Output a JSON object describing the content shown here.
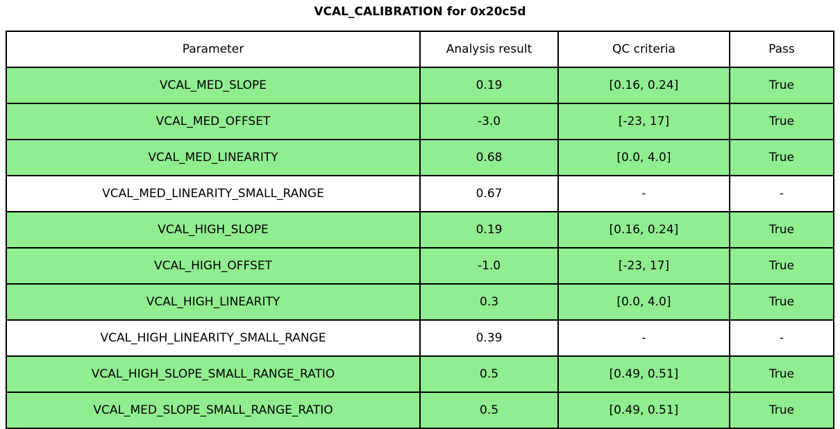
{
  "title": "VCAL_CALIBRATION for 0x20c5d",
  "colors": {
    "row_pass_green": "#90EE90",
    "row_plain": "#ffffff",
    "border": "#000000",
    "text": "#000000"
  },
  "chart_data": {
    "type": "table",
    "title": "VCAL_CALIBRATION for 0x20c5d",
    "columns": [
      "Parameter",
      "Analysis result",
      "QC criteria",
      "Pass"
    ],
    "rows": [
      [
        "VCAL_MED_SLOPE",
        "0.19",
        "[0.16, 0.24]",
        "True"
      ],
      [
        "VCAL_MED_OFFSET",
        "-3.0",
        "[-23, 17]",
        "True"
      ],
      [
        "VCAL_MED_LINEARITY",
        "0.68",
        "[0.0, 4.0]",
        "True"
      ],
      [
        "VCAL_MED_LINEARITY_SMALL_RANGE",
        "0.67",
        "-",
        "-"
      ],
      [
        "VCAL_HIGH_SLOPE",
        "0.19",
        "[0.16, 0.24]",
        "True"
      ],
      [
        "VCAL_HIGH_OFFSET",
        "-1.0",
        "[-23, 17]",
        "True"
      ],
      [
        "VCAL_HIGH_LINEARITY",
        "0.3",
        "[0.0, 4.0]",
        "True"
      ],
      [
        "VCAL_HIGH_LINEARITY_SMALL_RANGE",
        "0.39",
        "-",
        "-"
      ],
      [
        "VCAL_HIGH_SLOPE_SMALL_RANGE_RATIO",
        "0.5",
        "[0.49, 0.51]",
        "True"
      ],
      [
        "VCAL_MED_SLOPE_SMALL_RANGE_RATIO",
        "0.5",
        "[0.49, 0.51]",
        "True"
      ]
    ],
    "row_highlight": [
      true,
      true,
      true,
      false,
      true,
      true,
      true,
      false,
      true,
      true
    ],
    "highlight_color": "#90EE90",
    "grid": true,
    "legend": "none"
  }
}
